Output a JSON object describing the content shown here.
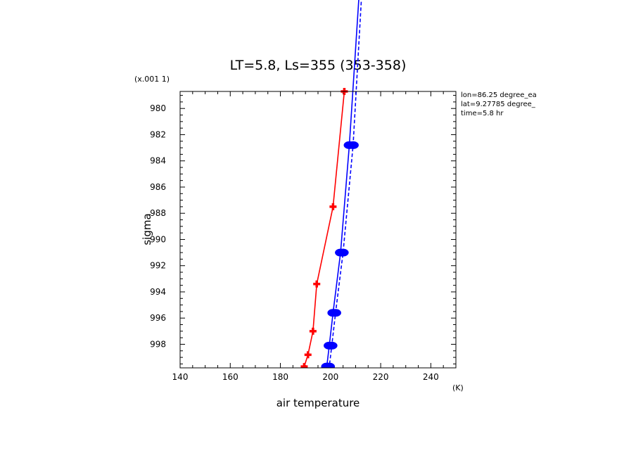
{
  "chart_data": {
    "type": "line",
    "title": "LT=5.8, Ls=355 (353-358)",
    "xlabel": "air temperature",
    "xunit": "(K)",
    "ylabel": "sigma",
    "yscale_label": "(x.001 1)",
    "xlim": [
      140,
      250
    ],
    "ylim": [
      978.7,
      999.8
    ],
    "x_ticks": [
      140,
      160,
      180,
      200,
      220,
      240
    ],
    "y_ticks": [
      980,
      982,
      984,
      986,
      988,
      990,
      992,
      994,
      996,
      998
    ],
    "y_tick_labels": [
      "980",
      "982",
      "984",
      "986",
      "988",
      "990",
      "992",
      "994",
      "996",
      "998"
    ],
    "annotations": [
      "lon=86.25 degree_ea",
      "lat=9.27785 degree_",
      "time=5.8 hr"
    ],
    "series": [
      {
        "color": "#ff0000",
        "style": "solid",
        "marker": "plus",
        "points": [
          [
            205.5,
            978.7
          ],
          [
            201,
            987.5
          ],
          [
            194.5,
            993.4
          ],
          [
            193,
            997.0
          ],
          [
            191,
            998.8
          ],
          [
            189.5,
            999.7
          ]
        ]
      },
      {
        "color": "#0000ff",
        "style": "solid",
        "marker": "circle",
        "points": [
          [
            211.5,
            971.0
          ],
          [
            207.5,
            982.8
          ],
          [
            204,
            991.0
          ],
          [
            201,
            995.6
          ],
          [
            199.5,
            998.1
          ],
          [
            198.5,
            999.7
          ]
        ]
      },
      {
        "color": "#0000ff",
        "style": "dashed",
        "marker": "circle",
        "points": [
          [
            212.5,
            971.0
          ],
          [
            209,
            982.8
          ],
          [
            205,
            991.0
          ],
          [
            202,
            995.6
          ],
          [
            200.5,
            998.1
          ],
          [
            199.5,
            999.7
          ]
        ]
      }
    ]
  }
}
